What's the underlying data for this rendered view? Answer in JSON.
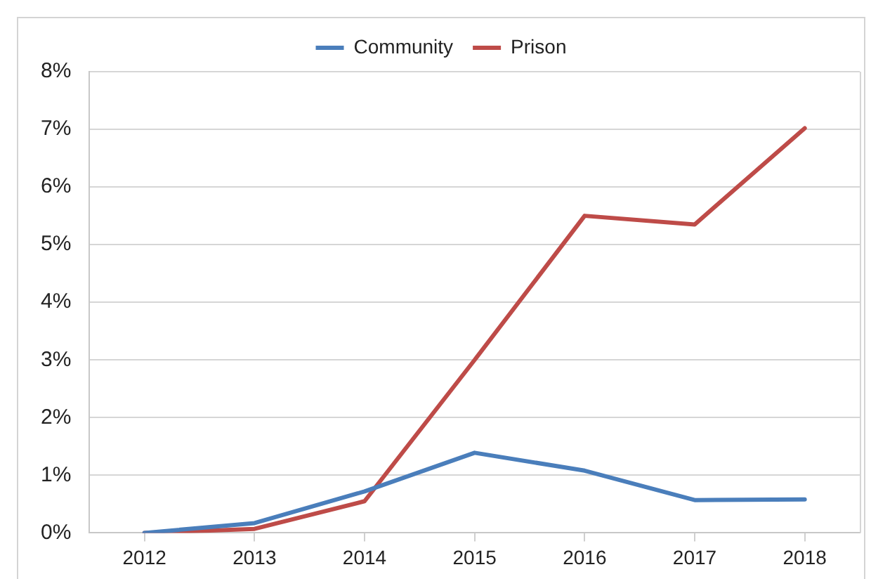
{
  "chart_data": {
    "type": "line",
    "categories": [
      "2012",
      "2013",
      "2014",
      "2015",
      "2016",
      "2017",
      "2018"
    ],
    "series": [
      {
        "name": "Community",
        "color": "#4a7ebb",
        "values": [
          0,
          0.17,
          0.72,
          1.39,
          1.08,
          0.57,
          0.58
        ]
      },
      {
        "name": "Prison",
        "color": "#be4b48",
        "values": [
          0,
          0.07,
          0.55,
          3.0,
          5.5,
          5.35,
          7.02
        ]
      }
    ],
    "ylim": [
      0,
      8
    ],
    "yticks": [
      {
        "value": 0,
        "label": "0%"
      },
      {
        "value": 1,
        "label": "1%"
      },
      {
        "value": 2,
        "label": "2%"
      },
      {
        "value": 3,
        "label": "3%"
      },
      {
        "value": 4,
        "label": "4%"
      },
      {
        "value": 5,
        "label": "5%"
      },
      {
        "value": 6,
        "label": "6%"
      },
      {
        "value": 7,
        "label": "7%"
      },
      {
        "value": 8,
        "label": "8%"
      }
    ],
    "grid": "y",
    "legend": "top",
    "marker": "none",
    "line_style": "solid"
  }
}
